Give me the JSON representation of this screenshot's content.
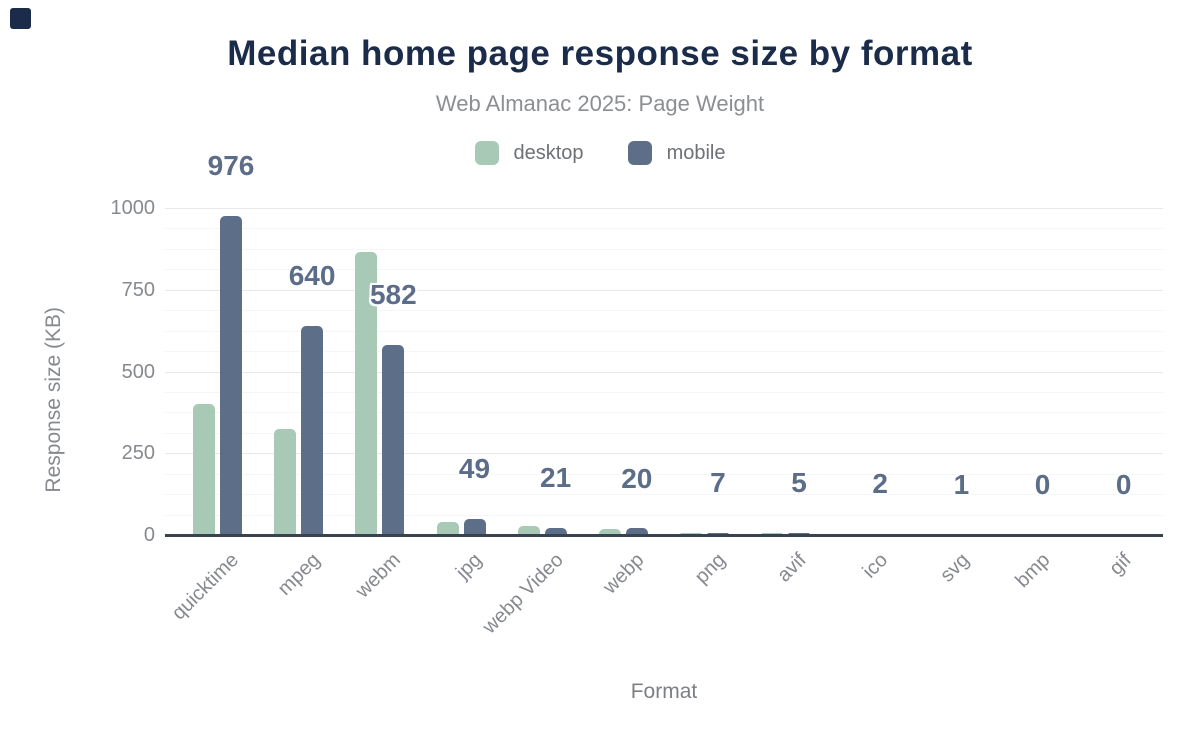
{
  "corner_mark": {
    "color": "#1b2b4a"
  },
  "chart_data": {
    "type": "bar",
    "title": "Median home page response size by format",
    "subtitle": "Web Almanac 2025: Page Weight",
    "xlabel": "Format",
    "ylabel": "Response size (KB)",
    "categories": [
      "quicktime",
      "mpeg",
      "webm",
      "jpg",
      "webp Video",
      "webp",
      "png",
      "avif",
      "ico",
      "svg",
      "bmp",
      "gif"
    ],
    "series": [
      {
        "name": "desktop",
        "color": "#a9c9b7",
        "values": [
          400,
          325,
          865,
          40,
          28,
          18,
          7,
          6,
          2,
          1,
          0,
          0
        ]
      },
      {
        "name": "mobile",
        "color": "#5d6e89",
        "values": [
          976,
          640,
          582,
          49,
          21,
          20,
          7,
          5,
          2,
          1,
          0,
          0
        ]
      }
    ],
    "data_labels": [
      "976",
      "640",
      "582",
      "49",
      "21",
      "20",
      "7",
      "5",
      "2",
      "1",
      "0",
      "0"
    ],
    "data_label_series": "mobile",
    "yticks": [
      0,
      250,
      500,
      750,
      1000
    ],
    "ylim": [
      0,
      1000
    ],
    "minor_tick_interval": 62.5,
    "grid": "horizontal-major-and-minor",
    "legend_position": "top-center"
  },
  "colors": {
    "title": "#1b2b4a",
    "subtitle": "#8b8e93",
    "legend_text": "#6e7177",
    "axis_text": "#86898e",
    "axis_title": "#7c8085",
    "data_label": "#5b6d89",
    "grid_major": "#e7e8ea",
    "grid_minor": "#f4f5f6",
    "axis_line": "#39434f",
    "background": "#ffffff"
  }
}
